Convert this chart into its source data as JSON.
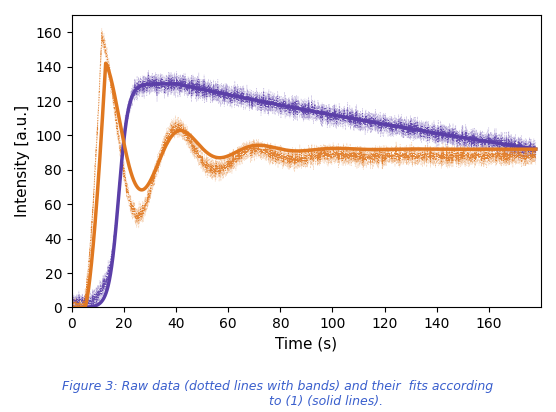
{
  "title": "Figure 3: Raw data (dotted lines with bands) and their  fits according\n                        to (1) (solid lines).",
  "xlabel": "Time (s)",
  "ylabel": "Intensity [a.u.]",
  "xlim": [
    0,
    180
  ],
  "ylim": [
    0,
    170
  ],
  "xticks": [
    0,
    20,
    40,
    60,
    80,
    100,
    120,
    140,
    160
  ],
  "yticks": [
    0,
    20,
    40,
    60,
    80,
    100,
    120,
    140,
    160
  ],
  "purple_color": "#5B3FA8",
  "orange_color": "#E07820",
  "caption_color": "#3A5FCD",
  "figsize": [
    5.56,
    4.12
  ],
  "dpi": 100
}
